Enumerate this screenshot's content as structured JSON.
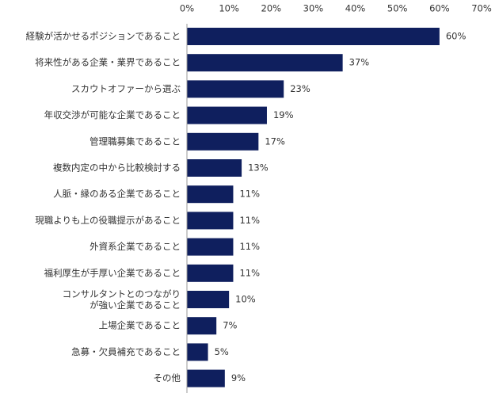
{
  "chart_data": {
    "type": "bar",
    "orientation": "horizontal",
    "color": "#0f1f5e",
    "categories": [
      "経験が活かせるポジションであること",
      "将来性がある企業・業界であること",
      "スカウトオファーから選ぶ",
      "年収交渉が可能な企業であること",
      "管理職募集であること",
      "複数内定の中から比較検討する",
      "人脈・縁のある企業であること",
      "現職よりも上の役職提示があること",
      "外資系企業であること",
      "福利厚生が手厚い企業であること",
      "コンサルタントとのつながり\nが強い企業であること",
      "上場企業であること",
      "急募・欠員補充であること",
      "その他"
    ],
    "values": [
      60,
      37,
      23,
      19,
      17,
      13,
      11,
      11,
      11,
      11,
      10,
      7,
      5,
      9
    ],
    "value_labels": [
      "60%",
      "37%",
      "23%",
      "19%",
      "17%",
      "13%",
      "11%",
      "11%",
      "11%",
      "11%",
      "10%",
      "7%",
      "5%",
      "9%"
    ],
    "xlim": [
      0,
      70
    ],
    "xticks": [
      {
        "value": 0,
        "label": "0%"
      },
      {
        "value": 10,
        "label": "10%"
      },
      {
        "value": 20,
        "label": "20%"
      },
      {
        "value": 30,
        "label": "30%"
      },
      {
        "value": 40,
        "label": "40%"
      },
      {
        "value": 50,
        "label": "50%"
      },
      {
        "value": 60,
        "label": "60%"
      },
      {
        "value": 70,
        "label": "70%"
      }
    ],
    "grid": false
  }
}
